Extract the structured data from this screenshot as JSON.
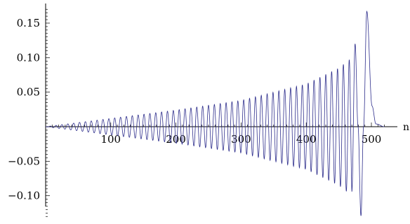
{
  "chart_data": {
    "type": "line",
    "title": "",
    "xlabel": "n",
    "ylabel": "",
    "xlim": [
      0,
      530
    ],
    "ylim": [
      -0.135,
      0.175
    ],
    "xticks": [
      100,
      200,
      300,
      400,
      500
    ],
    "xtick_labels": [
      "100",
      "200",
      "300",
      "400",
      "500"
    ],
    "yticks": [
      -0.1,
      -0.05,
      0.05,
      0.1,
      0.15
    ],
    "ytick_labels": [
      "−0.10",
      "−0.05",
      "0.05",
      "0.10",
      "0.15"
    ],
    "grid": false,
    "legend": "none",
    "line_color": "#2e2e8c",
    "series": [
      {
        "description": "growing oscillation, roughly 54 cycles over n = 0 to 520",
        "envelope": [
          {
            "x": 0,
            "y": 0.0
          },
          {
            "x": 100,
            "y": 0.012
          },
          {
            "x": 200,
            "y": 0.024
          },
          {
            "x": 300,
            "y": 0.038
          },
          {
            "x": 400,
            "y": 0.062
          },
          {
            "x": 450,
            "y": 0.085
          },
          {
            "x": 470,
            "y": 0.1
          },
          {
            "x": 480,
            "y": 0.128
          }
        ],
        "peaks": [
          {
            "x": 475,
            "y": 0.12
          },
          {
            "x": 484,
            "y": -0.129
          },
          {
            "x": 493,
            "y": 0.167
          }
        ],
        "end": {
          "x": 520,
          "y": 0.0
        }
      }
    ]
  }
}
